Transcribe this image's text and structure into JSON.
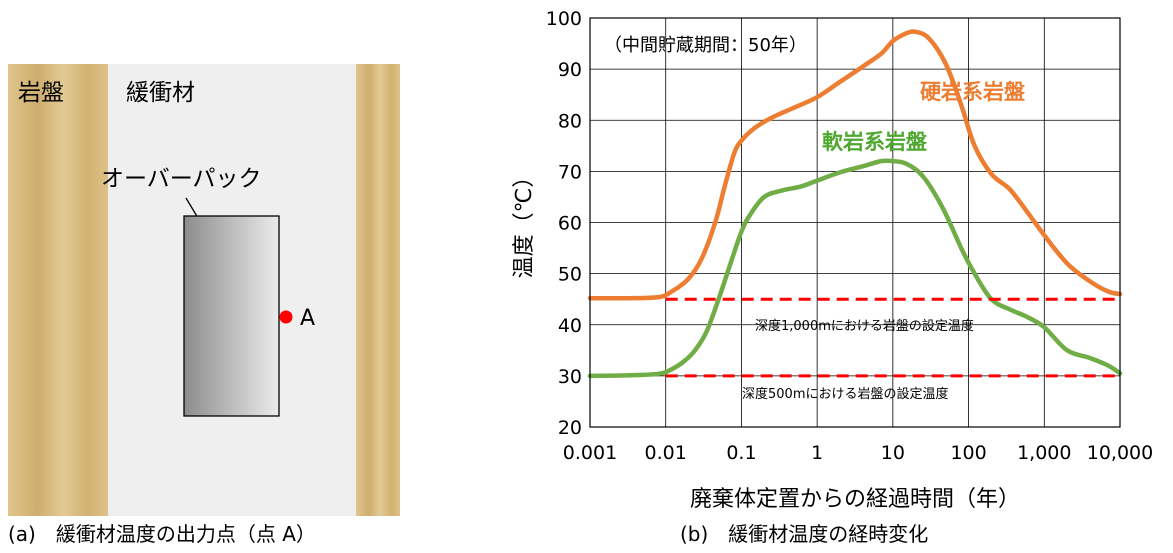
{
  "diagram": {
    "rock_label": "岩盤",
    "buffer_label": "緩衝材",
    "overpack_label": "オーバーパック",
    "point_label": "A",
    "caption": "(a)　緩衝材温度の出力点（点 A）",
    "colors": {
      "rock": "#d9bd84",
      "buffer": "#efefef",
      "point": "#ff0000"
    }
  },
  "chart_data": {
    "type": "line",
    "caption": "(b)　緩衝材温度の経時変化",
    "annotation": "（中間貯蔵期間：50年）",
    "xlabel": "廃棄体定置からの経過時間（年）",
    "ylabel": "温度（℃）",
    "xscale": "log",
    "xlim": [
      0.001,
      10000
    ],
    "ylim": [
      20,
      100
    ],
    "grid": true,
    "xticks": [
      {
        "v": 0.001,
        "label": "0.001"
      },
      {
        "v": 0.01,
        "label": "0.01"
      },
      {
        "v": 0.1,
        "label": "0.1"
      },
      {
        "v": 1,
        "label": "1"
      },
      {
        "v": 10,
        "label": "10"
      },
      {
        "v": 100,
        "label": "100"
      },
      {
        "v": 1000,
        "label": "1,000"
      },
      {
        "v": 10000,
        "label": "10,000"
      }
    ],
    "yticks": [
      20,
      30,
      40,
      50,
      60,
      70,
      80,
      90,
      100
    ],
    "series": [
      {
        "name": "硬岩系岩盤",
        "color": "#ed7d31",
        "x": [
          0.001,
          0.003,
          0.008,
          0.012,
          0.02,
          0.03,
          0.045,
          0.06,
          0.08,
          0.1,
          0.15,
          0.25,
          0.5,
          1,
          2,
          4,
          7,
          10,
          15,
          20,
          30,
          50,
          80,
          120,
          200,
          350,
          600,
          1000,
          2000,
          4000,
          7000,
          10000
        ],
        "y": [
          45.2,
          45.2,
          45.4,
          46.5,
          49,
          53,
          60,
          67,
          73.5,
          76,
          78.5,
          80.5,
          82.5,
          84.5,
          87.5,
          90.5,
          93,
          95.5,
          97,
          97.3,
          96,
          91,
          83,
          75,
          69.5,
          66.5,
          62,
          57.5,
          52,
          48.5,
          46.5,
          46
        ]
      },
      {
        "name": "軟岩系岩盤",
        "color": "#70ad47",
        "x": [
          0.001,
          0.003,
          0.008,
          0.012,
          0.018,
          0.025,
          0.035,
          0.05,
          0.07,
          0.1,
          0.13,
          0.2,
          0.35,
          0.6,
          1,
          2,
          4,
          7,
          10,
          15,
          25,
          45,
          80,
          120,
          200,
          350,
          600,
          1000,
          2000,
          4000,
          7000,
          10000
        ],
        "y": [
          30,
          30.1,
          30.4,
          31.3,
          33,
          35.2,
          38.8,
          45,
          51.5,
          58.2,
          61.5,
          65,
          66.3,
          67,
          68.2,
          69.8,
          71,
          72,
          72,
          71.5,
          69,
          63,
          55,
          50,
          45,
          43,
          41.5,
          39.5,
          35,
          33.5,
          32,
          30.5
        ]
      },
      {
        "name": "深度1,000mにおける岩盤の設定温度",
        "color": "#ff0000",
        "style": "dashed",
        "x": [
          0.01,
          10000
        ],
        "y": [
          45,
          45
        ]
      },
      {
        "name": "深度500mにおける岩盤の設定温度",
        "color": "#ff0000",
        "style": "dashed",
        "x": [
          0.01,
          10000
        ],
        "y": [
          30,
          30
        ]
      }
    ]
  }
}
